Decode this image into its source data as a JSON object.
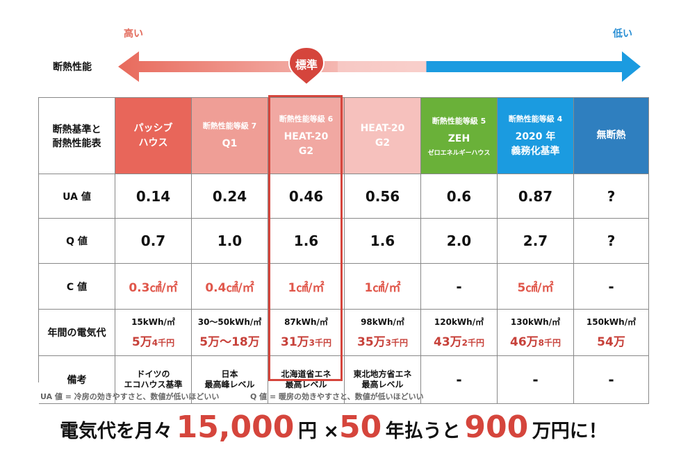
{
  "scale": {
    "high_label": "高い",
    "low_label": "低い",
    "row_label": "断熱性能",
    "marker_label": "標準"
  },
  "table": {
    "corner_label_line1": "断熱基準と",
    "corner_label_line2": "耐熱性能表",
    "columns": [
      {
        "grade": "",
        "name_line1": "パッシブ",
        "name_line2": "ハウス",
        "subname": "",
        "color": "#e8665a"
      },
      {
        "grade": "断熱性能等級 7",
        "name_line1": "Q1",
        "name_line2": "",
        "subname": "",
        "color": "#ef9e96"
      },
      {
        "grade": "断熱性能等級 6",
        "name_line1": "HEAT-20",
        "name_line2": "G2",
        "subname": "",
        "color": "#f1a8a2"
      },
      {
        "grade": "",
        "name_line1": "HEAT-20",
        "name_line2": "G2",
        "subname": "",
        "color": "#f6c1bd"
      },
      {
        "grade": "断熱性能等級 5",
        "name_line1": "ZEH",
        "name_line2": "",
        "subname": "ゼロエネルギーハウス",
        "color": "#6ab139"
      },
      {
        "grade": "断熱性能等級 4",
        "name_line1": "2020 年",
        "name_line2": "義務化基準",
        "subname": "",
        "color": "#1b9be0"
      },
      {
        "grade": "",
        "name_line1": "無断熱",
        "name_line2": "",
        "subname": "",
        "color": "#2f7fbf"
      }
    ],
    "rows": {
      "ua": {
        "label": "UA 値",
        "values": [
          "0.14",
          "0.24",
          "0.46",
          "0.56",
          "0.6",
          "0.87",
          "?"
        ]
      },
      "q": {
        "label": "Q 値",
        "values": [
          "0.7",
          "1.0",
          "1.6",
          "1.6",
          "2.0",
          "2.7",
          "?"
        ]
      },
      "c": {
        "label": "C 値",
        "values": [
          "0.3㎠/㎡",
          "0.4㎠/㎡",
          "1㎠/㎡",
          "1㎠/㎡",
          "-",
          "5㎠/㎡",
          "-"
        ]
      },
      "elec": {
        "label": "年間の電気代",
        "kwh": [
          "15kWh/㎡",
          "30〜50kWh/㎡",
          "87kWh/㎡",
          "98kWh/㎡",
          "120kWh/㎡",
          "130kWh/㎡",
          "150kWh/㎡"
        ],
        "cost_main": [
          "5万",
          "5万〜18万",
          "31万",
          "35万",
          "43万",
          "46万",
          "54万"
        ],
        "cost_sub": [
          "4千円",
          "",
          "3千円",
          "3千円",
          "2千円",
          "8千円",
          ""
        ]
      },
      "notes": {
        "label": "備考",
        "line1": [
          "ドイツの",
          "日本",
          "北海道省エネ",
          "東北地方省エネ",
          "-",
          "-",
          "-"
        ],
        "line2": [
          "エコハウス基準",
          "最高峰レベル",
          "最高レベル",
          "最高レベル",
          "",
          "",
          ""
        ]
      }
    }
  },
  "footnotes": {
    "ua": "UA 値 = 冷房の効きやすさと、数値が低いほどいい",
    "q": "Q 値 = 暖房の効きやすさと、数値が低いほどいい"
  },
  "summary": {
    "part1": "電気代を月々",
    "amount": "15,000",
    "part2": "円 ×",
    "years": "50",
    "part3": "年払うと",
    "total": "900",
    "part4": "万円に！"
  },
  "colors": {
    "accent_red": "#d5453c",
    "blue": "#1b9be0"
  }
}
